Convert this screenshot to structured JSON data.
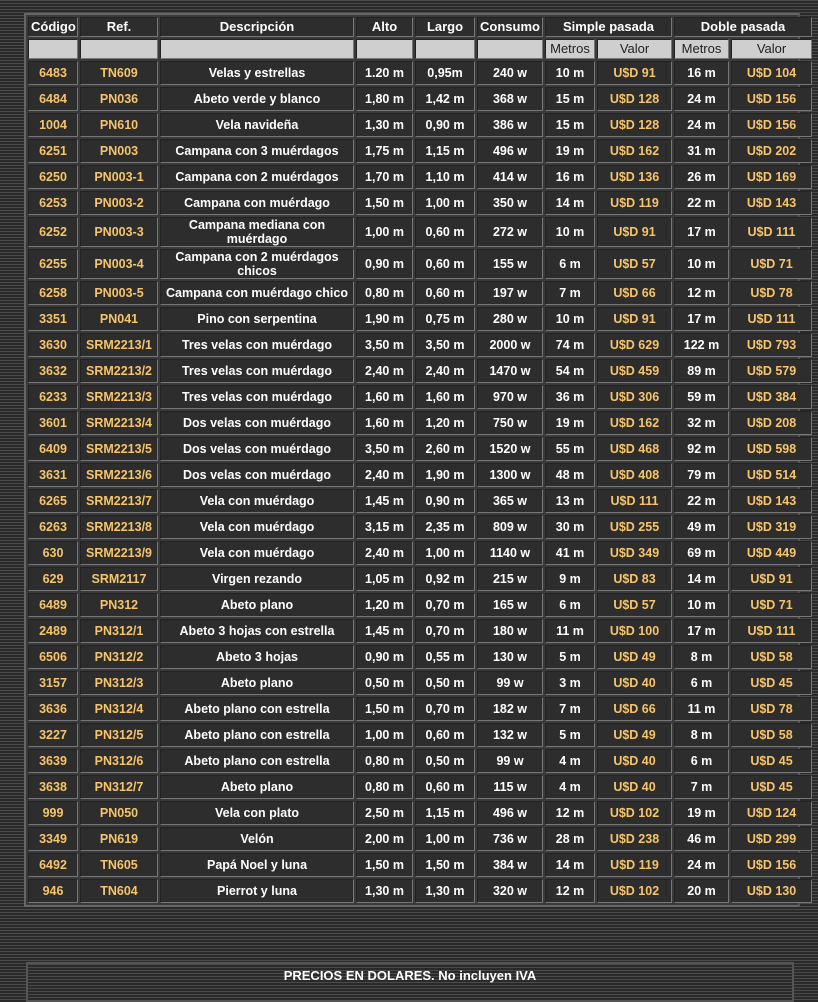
{
  "headers": {
    "codigo": "Código",
    "ref": "Ref.",
    "descripcion": "Descripción",
    "alto": "Alto",
    "largo": "Largo",
    "consumo": "Consumo",
    "simple": "Simple pasada",
    "doble": "Doble pasada",
    "metros": "Metros",
    "valor": "Valor"
  },
  "rows": [
    [
      "6483",
      "TN609",
      "Velas y estrellas",
      "1.20 m",
      "0,95m",
      "240 w",
      "10 m",
      "U$D 91",
      "16 m",
      "U$D 104"
    ],
    [
      "6484",
      "PN036",
      "Abeto verde y blanco",
      "1,80 m",
      "1,42 m",
      "368 w",
      "15 m",
      "U$D 128",
      "24 m",
      "U$D 156"
    ],
    [
      "1004",
      "PN610",
      "Vela navideña",
      "1,30 m",
      "0,90 m",
      "386 w",
      "15 m",
      "U$D 128",
      "24 m",
      "U$D 156"
    ],
    [
      "6251",
      "PN003",
      "Campana con 3 muérdagos",
      "1,75 m",
      "1,15 m",
      "496 w",
      "19 m",
      "U$D 162",
      "31 m",
      "U$D 202"
    ],
    [
      "6250",
      "PN003-1",
      "Campana con 2 muérdagos",
      "1,70 m",
      "1,10 m",
      "414 w",
      "16 m",
      "U$D 136",
      "26 m",
      "U$D 169"
    ],
    [
      "6253",
      "PN003-2",
      "Campana con muérdago",
      "1,50 m",
      "1,00 m",
      "350 w",
      "14 m",
      "U$D 119",
      "22 m",
      "U$D 143"
    ],
    [
      "6252",
      "PN003-3",
      "Campana mediana con muérdago",
      "1,00 m",
      "0,60 m",
      "272 w",
      "10 m",
      "U$D 91",
      "17 m",
      "U$D 111"
    ],
    [
      "6255",
      "PN003-4",
      "Campana con 2 muérdagos chicos",
      "0,90 m",
      "0,60 m",
      "155 w",
      "6 m",
      "U$D 57",
      "10 m",
      "U$D 71"
    ],
    [
      "6258",
      "PN003-5",
      "Campana con muérdago chico",
      "0,80 m",
      "0,60 m",
      "197 w",
      "7 m",
      "U$D 66",
      "12 m",
      "U$D 78"
    ],
    [
      "3351",
      "PN041",
      "Pino con serpentina",
      "1,90 m",
      "0,75 m",
      "280 w",
      "10 m",
      "U$D 91",
      "17 m",
      "U$D 111"
    ],
    [
      "3630",
      "SRM2213/1",
      "Tres velas con muérdago",
      "3,50 m",
      "3,50 m",
      "2000 w",
      "74 m",
      "U$D 629",
      "122 m",
      "U$D 793"
    ],
    [
      "3632",
      "SRM2213/2",
      "Tres velas con muérdago",
      "2,40 m",
      "2,40 m",
      "1470 w",
      "54 m",
      "U$D 459",
      "89 m",
      "U$D 579"
    ],
    [
      "6233",
      "SRM2213/3",
      "Tres velas con muérdago",
      "1,60 m",
      "1,60 m",
      "970 w",
      "36 m",
      "U$D 306",
      "59 m",
      "U$D 384"
    ],
    [
      "3601",
      "SRM2213/4",
      "Dos velas con muérdago",
      "1,60 m",
      "1,20 m",
      "750 w",
      "19 m",
      "U$D 162",
      "32 m",
      "U$D 208"
    ],
    [
      "6409",
      "SRM2213/5",
      "Dos velas con muérdago",
      "3,50 m",
      "2,60 m",
      "1520 w",
      "55 m",
      "U$D 468",
      "92 m",
      "U$D 598"
    ],
    [
      "3631",
      "SRM2213/6",
      "Dos velas con muérdago",
      "2,40 m",
      "1,90 m",
      "1300 w",
      "48 m",
      "U$D 408",
      "79 m",
      "U$D 514"
    ],
    [
      "6265",
      "SRM2213/7",
      "Vela con muérdago",
      "1,45 m",
      "0,90 m",
      "365 w",
      "13 m",
      "U$D 111",
      "22 m",
      "U$D 143"
    ],
    [
      "6263",
      "SRM2213/8",
      "Vela con muérdago",
      "3,15 m",
      "2,35 m",
      "809 w",
      "30 m",
      "U$D 255",
      "49 m",
      "U$D 319"
    ],
    [
      "630",
      "SRM2213/9",
      "Vela con muérdago",
      "2,40 m",
      "1,00 m",
      "1140 w",
      "41 m",
      "U$D 349",
      "69 m",
      "U$D 449"
    ],
    [
      "629",
      "SRM2117",
      "Virgen rezando",
      "1,05 m",
      "0,92 m",
      "215 w",
      "9 m",
      "U$D 83",
      "14 m",
      "U$D 91"
    ],
    [
      "6489",
      "PN312",
      "Abeto plano",
      "1,20 m",
      "0,70 m",
      "165 w",
      "6 m",
      "U$D 57",
      "10 m",
      "U$D 71"
    ],
    [
      "2489",
      "PN312/1",
      "Abeto 3 hojas con estrella",
      "1,45 m",
      "0,70 m",
      "180 w",
      "11 m",
      "U$D 100",
      "17 m",
      "U$D 111"
    ],
    [
      "6506",
      "PN312/2",
      "Abeto 3 hojas",
      "0,90 m",
      "0,55 m",
      "130 w",
      "5 m",
      "U$D 49",
      "8 m",
      "U$D 58"
    ],
    [
      "3157",
      "PN312/3",
      "Abeto plano",
      "0,50 m",
      "0,50 m",
      "99 w",
      "3 m",
      "U$D 40",
      "6 m",
      "U$D 45"
    ],
    [
      "3636",
      "PN312/4",
      "Abeto plano con estrella",
      "1,50 m",
      "0,70 m",
      "182 w",
      "7 m",
      "U$D 66",
      "11 m",
      "U$D 78"
    ],
    [
      "3227",
      "PN312/5",
      "Abeto plano con estrella",
      "1,00 m",
      "0,60 m",
      "132 w",
      "5 m",
      "U$D 49",
      "8 m",
      "U$D 58"
    ],
    [
      "3639",
      "PN312/6",
      "Abeto plano con estrella",
      "0,80 m",
      "0,50 m",
      "99 w",
      "4 m",
      "U$D 40",
      "6 m",
      "U$D 45"
    ],
    [
      "3638",
      "PN312/7",
      "Abeto plano",
      "0,80 m",
      "0,60 m",
      "115 w",
      "4 m",
      "U$D 40",
      "7 m",
      "U$D 45"
    ],
    [
      "999",
      "PN050",
      "Vela con plato",
      "2,50 m",
      "1,15 m",
      "496 w",
      "12 m",
      "U$D 102",
      "19 m",
      "U$D 124"
    ],
    [
      "3349",
      "PN619",
      "Velón",
      "2,00 m",
      "1,00 m",
      "736 w",
      "28 m",
      "U$D 238",
      "46 m",
      "U$D 299"
    ],
    [
      "6492",
      "TN605",
      "Papá Noel y luna",
      "1,50 m",
      "1,50 m",
      "384 w",
      "14 m",
      "U$D 119",
      "24 m",
      "U$D 156"
    ],
    [
      "946",
      "TN604",
      "Pierrot y luna",
      "1,30 m",
      "1,30 m",
      "320 w",
      "12 m",
      "U$D 102",
      "20 m",
      "U$D 130"
    ]
  ],
  "footer": "PRECIOS EN DOLARES. No incluyen IVA",
  "colors": {
    "highlight": "#f6c46a",
    "cell": "#2d2d2d",
    "subheader": "#cfcfcf"
  }
}
